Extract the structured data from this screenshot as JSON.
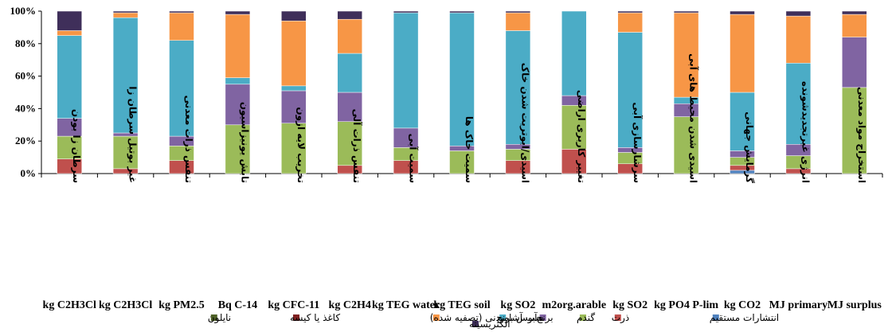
{
  "chart_data": {
    "type": "bar",
    "stacked": true,
    "percent": true,
    "ylim": [
      0,
      100
    ],
    "yticks": [
      "0%",
      "20%",
      "40%",
      "60%",
      "80%",
      "100%"
    ],
    "grid": false,
    "legend_position": "bottom",
    "categories": [
      "سرطان زا بودن",
      "غیر بوتیل سرطان زا",
      "تنفس ذرات معدنی",
      "تابش یونیزاسیون",
      "تخریب لایه ازون",
      "تنفس ذرات آلی",
      "سمیت آبی",
      "سمیت خاک ها",
      "اسیدی/ا‌یوتریت شدن خاک",
      "تغییر کاربری اراضی",
      "سرشارسازی آبی",
      "اسیدی شدن محیط های آبی",
      "گرمایش جهانی",
      "انرژی غیرتجدیدشونده",
      "استخراج مواد معدنی"
    ],
    "units": [
      "kg C2H3Cl",
      "kg C2H3Cl",
      "kg PM2.5",
      "Bq C-14",
      "kg CFC-11",
      "kg C2H4",
      "kg TEG water",
      "kg TEG soil",
      "kg SO2",
      "m2org.arable",
      "kg SO2",
      "kg PO4 P-lim",
      "kg CO2",
      "MJ primary",
      "MJ surplus"
    ],
    "series": [
      {
        "name": "انتشارات مستقیم",
        "color": "#4F81BD",
        "values": [
          0,
          0,
          0,
          0,
          0,
          0,
          0,
          0,
          0,
          0,
          0,
          0,
          2,
          0,
          0
        ]
      },
      {
        "name": "ذرت",
        "color": "#C0504D",
        "values": [
          9,
          3,
          8,
          0,
          0,
          5,
          8,
          0,
          8,
          15,
          6,
          0,
          3,
          3,
          0
        ]
      },
      {
        "name": "گندم",
        "color": "#9BBB59",
        "values": [
          14,
          20,
          9,
          30,
          31,
          27,
          8,
          14,
          7,
          27,
          7,
          35,
          5,
          8,
          53
        ]
      },
      {
        "name": "برنج",
        "color": "#8064A2",
        "values": [
          11,
          2,
          6,
          25,
          20,
          18,
          12,
          3,
          3,
          6,
          3,
          8,
          4,
          7,
          31
        ]
      },
      {
        "name": "سبوس برنج",
        "color": "#4BACC6",
        "values": [
          51,
          71,
          59,
          4,
          3,
          24,
          71,
          82,
          70,
          52,
          71,
          4,
          36,
          50,
          0
        ]
      },
      {
        "name": "آب آشامیدنی (تصفیه شده)",
        "color": "#F79646",
        "values": [
          3,
          3,
          17,
          39,
          40,
          21,
          0,
          0,
          11,
          0,
          12,
          52,
          48,
          29,
          14
        ]
      },
      {
        "name": "کاغذ یا کیسه",
        "color": "#7F2020",
        "values": [
          0,
          0,
          0,
          0,
          0,
          0,
          0,
          0,
          0,
          0,
          0,
          0,
          0,
          0,
          0
        ]
      },
      {
        "name": "نایلون",
        "color": "#4F6228",
        "values": [
          0,
          0,
          0,
          0,
          0,
          0,
          0,
          0,
          0,
          0,
          0,
          0,
          0,
          0,
          0
        ]
      },
      {
        "name": "الکتریسیته",
        "color": "#3F2F5A",
        "values": [
          12,
          1,
          1,
          2,
          6,
          5,
          1,
          1,
          1,
          0,
          1,
          1,
          2,
          3,
          2
        ]
      }
    ]
  }
}
